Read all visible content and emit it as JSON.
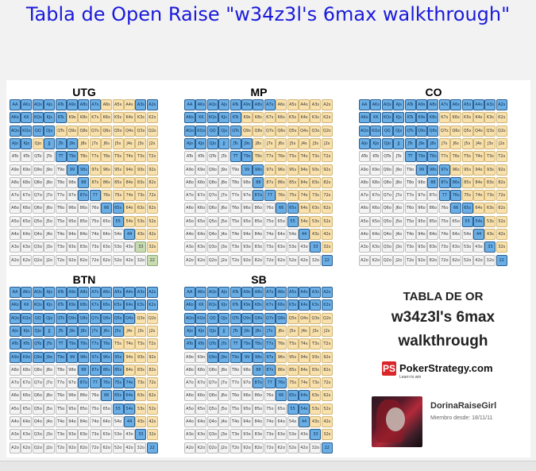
{
  "page_title": "Tabla de Open Raise \"w34z3l's 6max walkthrough\"",
  "grids": [
    {
      "name": "UTG",
      "key": "utg",
      "rows": [
        "BBBBBBBBYYYBB",
        "BBBBBYYYYYYYY",
        "BBBBYYYYYYYYY",
        "BBYBBBYYYYYYY",
        "WWWWBBYYYYYYY",
        "WWWWWBBYYYYYY",
        "WWWWWWBYYYYYY",
        "WWWWWWBBYYYYY",
        "WWWWWWWWBBYYY",
        "WWWWWWWWWBYYY",
        "WWWWWWWWWWBYY",
        "WWWWWWWWWWWGY",
        "WWWWWWWWWWWWG"
      ]
    },
    {
      "name": "MP",
      "key": "mp",
      "rows": [
        "BBBBBBBBYYYYY",
        "BBBBBYYYYYYYY",
        "BBBBBYYYYYYYY",
        "BBBBBBYYYYYYY",
        "WWWWBBYYYYYYY",
        "WWWWWBBYYYYYY",
        "WWWWWWBYYYYYY",
        "WWWWWWBBYYYYY",
        "WWWWWWWWBBYYY",
        "WWWWWWWWWBYYY",
        "WWWWWWWWWWBYY",
        "WWWWWWWWWWWBY",
        "WWWWWWWWWWWWB"
      ]
    },
    {
      "name": "CO",
      "key": "co",
      "rows": [
        "BBBBBBBBBBBBB",
        "BBBBBBBYYYYYY",
        "BBBBBBBYYYYYY",
        "BBBBBBBYYYYYY",
        "WWWWBBBYYYYYY",
        "WWWWWBBBYYYYY",
        "WWWWWWBBBYYYY",
        "WWWWWWWBBYYYY",
        "WWWWWWWWBBYYY",
        "WWWWWWWWWBBYY",
        "WWWWWWWWWWBYY",
        "WWWWWWWWWWWBY",
        "WWWWWWWWWWWWB"
      ]
    },
    {
      "name": "BTN",
      "key": "btn",
      "rows": [
        "BBBBBBBBBBBBB",
        "BBBBBBBBBBBBB",
        "BBBBBBBBBBBYY",
        "BBBBBBBBBBYYY",
        "BBBBBBBBBYYYY",
        "BBBBBBBBBBYYY",
        "WWWWWWBBBBYYY",
        "WWWWWWBBBBBYY",
        "WWWWWWWWBBBYY",
        "WWWWWWWWWBBYY",
        "WWWWWWWWWWBYY",
        "WWWWWWWWWWWBY",
        "WWWWWWWWWWWWB"
      ]
    },
    {
      "name": "SB",
      "key": "sb",
      "rows": [
        "BBBBBBBBBBBBB",
        "BBBBBBBBBBBBB",
        "BBBBBBBBBYYYY",
        "BBBBBBBBYYYYY",
        "BBBBBBBBYYYYY",
        "WWBBBBBBYYYYY",
        "WWWWWWBBYYYYY",
        "WWWWWWBBBYYYY",
        "WWWWWWWWBBBYY",
        "WWWWWWWWWBBYY",
        "WWWWWWWWWWBYY",
        "WWWWWWWWWWWBY",
        "WWWWWWWWWWWWB"
      ]
    }
  ],
  "ranks": [
    "A",
    "K",
    "Q",
    "J",
    "T",
    "9",
    "8",
    "7",
    "6",
    "5",
    "4",
    "3",
    "2"
  ],
  "promo": {
    "line1": "TABLA DE OR",
    "line2": "w34z3l's 6max",
    "line3": "walkthrough",
    "brand_icon": "PS",
    "brand": "PokerStrategy.com",
    "brand_sub": "Learn to win",
    "username": "DorinaRaiseGirl",
    "member_since": "Miembro desde: 18/11/11"
  },
  "colors": {
    "raise": "#6aaee6",
    "fold": "#f9e1ad",
    "never": "#f3f3f3",
    "limp": "#c8dcb2",
    "title": "#1a1adb",
    "brand_red": "#d9262a"
  },
  "icons": {
    "brand_logo": "pokerstrategy-logo-icon",
    "avatar": "user-avatar-image"
  }
}
